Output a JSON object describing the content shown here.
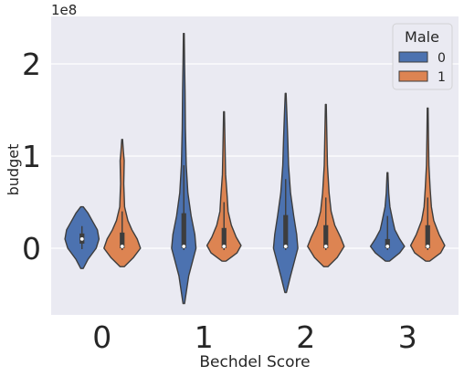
{
  "chart_data": {
    "type": "violin",
    "xlabel": "Bechdel Score",
    "ylabel": "budget",
    "offset_label": "1e8",
    "categories": [
      "0",
      "1",
      "2",
      "3"
    ],
    "y_ticks": [
      0,
      1,
      2
    ],
    "ylim": [
      -0.72,
      2.48
    ],
    "y_scale": "1e8",
    "grid": true,
    "legend": {
      "title": "Male",
      "placement": "top-right",
      "entries": [
        {
          "label": "0",
          "color": "#4c72b0"
        },
        {
          "label": "1",
          "color": "#dd8452"
        }
      ]
    },
    "series": [
      {
        "name": "0",
        "color": "#4c72b0",
        "violins": [
          {
            "category": "0",
            "min": -0.22,
            "max": 0.45,
            "q1": 0.05,
            "median": 0.1,
            "q3": 0.16,
            "whisker_low": -0.01,
            "whisker_high": 0.24,
            "profile": [
              [
                -0.22,
                0.03
              ],
              [
                -0.12,
                0.15
              ],
              [
                0.0,
                0.35
              ],
              [
                0.1,
                0.42
              ],
              [
                0.2,
                0.38
              ],
              [
                0.3,
                0.25
              ],
              [
                0.38,
                0.15
              ],
              [
                0.45,
                0.03
              ]
            ]
          },
          {
            "category": "1",
            "min": -0.6,
            "max": 2.33,
            "q1": 0.0,
            "median": 0.02,
            "q3": 0.38,
            "whisker_low": -0.02,
            "whisker_high": 0.9,
            "profile": [
              [
                -0.6,
                0.02
              ],
              [
                -0.3,
                0.12
              ],
              [
                0.0,
                0.3
              ],
              [
                0.15,
                0.27
              ],
              [
                0.35,
                0.18
              ],
              [
                0.6,
                0.1
              ],
              [
                0.9,
                0.06
              ],
              [
                1.3,
                0.04
              ],
              [
                1.7,
                0.03
              ],
              [
                2.0,
                0.02
              ],
              [
                2.33,
                0.01
              ]
            ]
          },
          {
            "category": "2",
            "min": -0.48,
            "max": 1.68,
            "q1": 0.0,
            "median": 0.02,
            "q3": 0.36,
            "whisker_low": -0.02,
            "whisker_high": 0.75,
            "profile": [
              [
                -0.48,
                0.02
              ],
              [
                -0.3,
                0.12
              ],
              [
                0.0,
                0.3
              ],
              [
                0.15,
                0.27
              ],
              [
                0.35,
                0.2
              ],
              [
                0.6,
                0.12
              ],
              [
                0.9,
                0.07
              ],
              [
                1.2,
                0.05
              ],
              [
                1.45,
                0.03
              ],
              [
                1.68,
                0.01
              ]
            ]
          },
          {
            "category": "3",
            "min": -0.14,
            "max": 0.82,
            "q1": 0.0,
            "median": 0.02,
            "q3": 0.1,
            "whisker_low": -0.02,
            "whisker_high": 0.35,
            "profile": [
              [
                -0.14,
                0.05
              ],
              [
                -0.05,
                0.3
              ],
              [
                0.02,
                0.42
              ],
              [
                0.1,
                0.3
              ],
              [
                0.2,
                0.18
              ],
              [
                0.3,
                0.13
              ],
              [
                0.45,
                0.06
              ],
              [
                0.6,
                0.03
              ],
              [
                0.82,
                0.01
              ]
            ]
          }
        ]
      },
      {
        "name": "1",
        "color": "#dd8452",
        "violins": [
          {
            "category": "0",
            "min": -0.2,
            "max": 1.18,
            "q1": 0.0,
            "median": 0.02,
            "q3": 0.17,
            "whisker_low": -0.02,
            "whisker_high": 0.4,
            "profile": [
              [
                -0.2,
                0.05
              ],
              [
                -0.1,
                0.28
              ],
              [
                0.0,
                0.45
              ],
              [
                0.1,
                0.37
              ],
              [
                0.2,
                0.24
              ],
              [
                0.3,
                0.14
              ],
              [
                0.45,
                0.06
              ],
              [
                0.7,
                0.04
              ],
              [
                0.95,
                0.05
              ],
              [
                1.05,
                0.03
              ],
              [
                1.18,
                0.01
              ]
            ]
          },
          {
            "category": "1",
            "min": -0.14,
            "max": 1.48,
            "q1": 0.0,
            "median": 0.02,
            "q3": 0.22,
            "whisker_low": -0.02,
            "whisker_high": 0.5,
            "profile": [
              [
                -0.14,
                0.05
              ],
              [
                -0.05,
                0.32
              ],
              [
                0.03,
                0.42
              ],
              [
                0.12,
                0.3
              ],
              [
                0.25,
                0.18
              ],
              [
                0.4,
                0.1
              ],
              [
                0.55,
                0.08
              ],
              [
                0.8,
                0.04
              ],
              [
                1.1,
                0.025
              ],
              [
                1.48,
                0.01
              ]
            ]
          },
          {
            "category": "2",
            "min": -0.2,
            "max": 1.56,
            "q1": 0.0,
            "median": 0.02,
            "q3": 0.25,
            "whisker_low": -0.02,
            "whisker_high": 0.55,
            "profile": [
              [
                -0.2,
                0.05
              ],
              [
                -0.1,
                0.28
              ],
              [
                0.02,
                0.45
              ],
              [
                0.12,
                0.36
              ],
              [
                0.25,
                0.22
              ],
              [
                0.4,
                0.13
              ],
              [
                0.6,
                0.08
              ],
              [
                0.9,
                0.04
              ],
              [
                1.2,
                0.025
              ],
              [
                1.56,
                0.01
              ]
            ]
          },
          {
            "category": "3",
            "min": -0.14,
            "max": 1.52,
            "q1": 0.0,
            "median": 0.02,
            "q3": 0.25,
            "whisker_low": -0.02,
            "whisker_high": 0.55,
            "profile": [
              [
                -0.14,
                0.05
              ],
              [
                -0.05,
                0.32
              ],
              [
                0.03,
                0.42
              ],
              [
                0.15,
                0.28
              ],
              [
                0.3,
                0.15
              ],
              [
                0.45,
                0.09
              ],
              [
                0.65,
                0.06
              ],
              [
                0.9,
                0.03
              ],
              [
                1.2,
                0.02
              ],
              [
                1.52,
                0.01
              ]
            ]
          }
        ]
      }
    ]
  }
}
